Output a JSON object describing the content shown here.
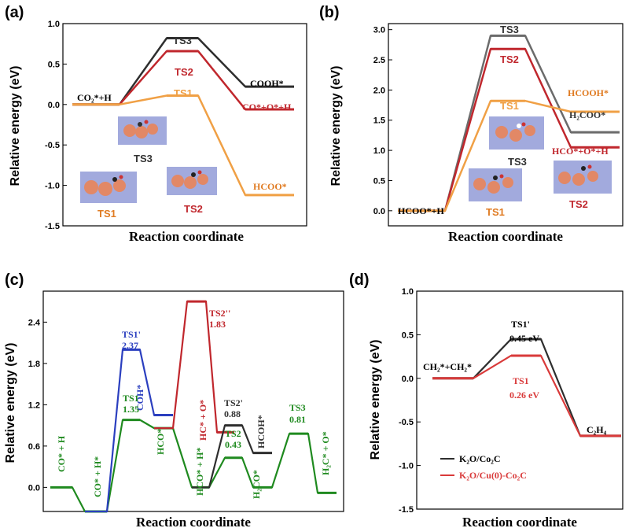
{
  "colors": {
    "black": "#2e2e2e",
    "gray": "#6b6b6b",
    "red": "#c0272d",
    "orange": "#f0a045",
    "darkorange": "#e07b22",
    "blue": "#2b3fbf",
    "green": "#1f8a1f",
    "panel_d_red": "#d93a3a"
  },
  "chart_data": [
    {
      "panel": "(a)",
      "type": "line",
      "ylabel": "Relative energy (eV)",
      "xlabel": "Reaction coordinate",
      "ylim": [
        -1.5,
        1.0
      ],
      "yticks": [
        "1.0",
        "0.5",
        "0.0",
        "-0.5",
        "-1.0",
        "-1.5"
      ],
      "series": [
        {
          "color": "black",
          "levels": [
            0.0,
            0.82,
            0.22
          ]
        },
        {
          "color": "red",
          "levels": [
            0.0,
            0.66,
            -0.06
          ]
        },
        {
          "color": "orange",
          "levels": [
            0.0,
            0.11,
            -1.12
          ]
        }
      ],
      "labels": {
        "start": "CO₂*+H",
        "ts3": "TS3",
        "ts2": "TS2",
        "ts1": "TS1",
        "cooh": "COOH*",
        "co_o_h": "CO*+O*+H",
        "hcoo": "HCOO*"
      },
      "insets": [
        "TS3",
        "TS1",
        "TS2"
      ]
    },
    {
      "panel": "(b)",
      "type": "line",
      "ylabel": "Relative energy (eV)",
      "xlabel": "Reaction coordinate",
      "ylim": [
        -0.25,
        3.1
      ],
      "yticks": [
        "3.0",
        "2.5",
        "2.0",
        "1.5",
        "1.0",
        "0.5",
        "0.0"
      ],
      "series": [
        {
          "color": "gray",
          "levels": [
            0.0,
            2.9,
            1.3
          ]
        },
        {
          "color": "red",
          "levels": [
            0.0,
            2.68,
            1.05
          ]
        },
        {
          "color": "orange",
          "levels": [
            0.0,
            1.82,
            1.64
          ]
        }
      ],
      "labels": {
        "start": "HCOO*+H",
        "ts3": "TS3",
        "ts2": "TS2",
        "ts1": "TS1",
        "hcooh": "HCOOH*",
        "h2coo": "H₂COO*",
        "hco_o_h": "HCO*+O*+H"
      },
      "insets": [
        "TS3",
        "TS1",
        "TS2"
      ]
    },
    {
      "panel": "(c)",
      "type": "line",
      "ylabel": "Relative energy (eV)",
      "xlabel": "Reaction coordinate",
      "ylim": [
        -0.35,
        2.85
      ],
      "yticks": [
        "2.4",
        "1.8",
        "1.2",
        "0.6",
        "0.0"
      ],
      "green_path": [
        0.0,
        -0.35,
        0.98,
        0.86,
        0.0,
        0.43,
        0.0,
        0.78,
        -0.08
      ],
      "blue_branch": {
        "from": -0.35,
        "ts": 2.0,
        "end": 1.05
      },
      "red_branch": {
        "from": 0.86,
        "ts": 2.7,
        "end": 0.8
      },
      "black_branch": {
        "from": 0.0,
        "ts": 0.9,
        "end": 0.5
      },
      "labels": {
        "co_h": "CO* + H",
        "co_h2": "CO* + H*",
        "ts1p": "TS1'",
        "ts1p_val": "2.37",
        "coh": "COH*",
        "ts1": "TS1",
        "ts1_val": "1.35",
        "hco": "HCO*",
        "ts2pp": "TS2''",
        "ts2pp_val": "1.83",
        "hc_o": "HC* + O*",
        "hco_h": "HCO* + H*",
        "ts2p": "TS2'",
        "ts2p_val": "0.88",
        "ts2": "TS2",
        "ts2_val": "0.43",
        "hcoh": "HCOH*",
        "h2co": "H₂CO*",
        "ts3": "TS3",
        "ts3_val": "0.81",
        "h2c_o": "H₂C* + O*"
      }
    },
    {
      "panel": "(d)",
      "type": "line",
      "ylabel": "Relative energy (eV)",
      "xlabel": "Reaction coordinate",
      "ylim": [
        -1.5,
        1.0
      ],
      "yticks": [
        "1.0",
        "0.5",
        "0.0",
        "-0.5",
        "-1.0",
        "-1.5"
      ],
      "series": [
        {
          "name": "K₂O/Co₂C",
          "color": "black",
          "levels": [
            0.0,
            0.45,
            -0.66
          ]
        },
        {
          "name": "K₂O/Cu(0)-Co₂C",
          "color": "panel_d_red",
          "levels": [
            0.0,
            0.26,
            -0.66
          ]
        }
      ],
      "labels": {
        "start": "CH₂*+CH₂*",
        "ts1p": "TS1'",
        "ts1p_val": "0.45 eV",
        "ts1": "TS1",
        "ts1_val": "0.26 eV",
        "end": "C₂H₄"
      }
    }
  ]
}
